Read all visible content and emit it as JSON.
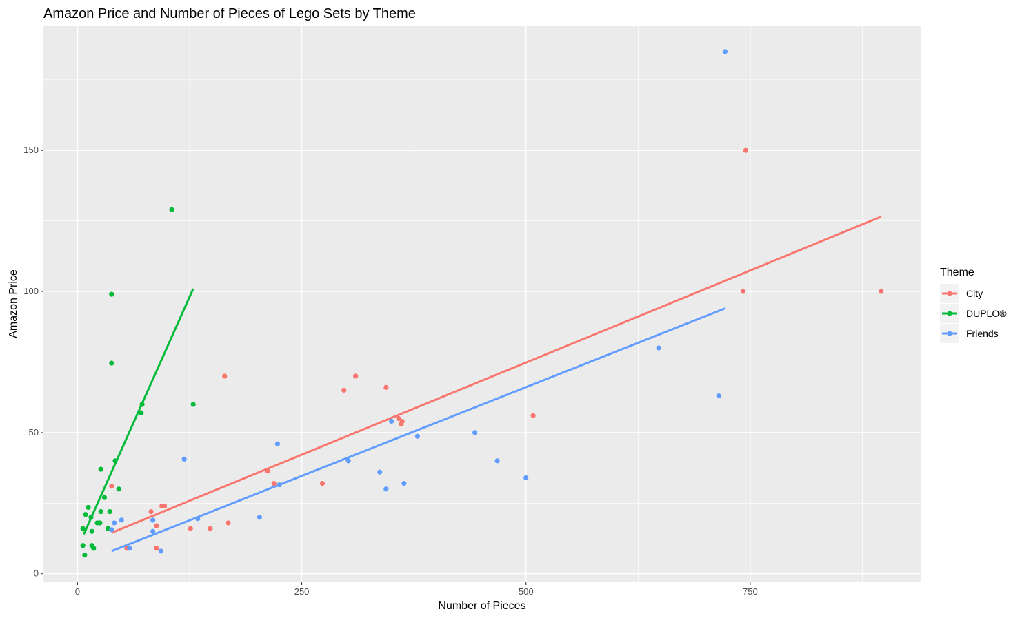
{
  "chart_data": {
    "type": "scatter",
    "title": "Amazon Price and Number of Pieces of Lego Sets by Theme",
    "xlabel": "Number of Pieces",
    "ylabel": "Amazon Price",
    "xlim": [
      -38,
      940
    ],
    "ylim": [
      -3,
      194
    ],
    "xticks": [
      0,
      250,
      500,
      750
    ],
    "yticks": [
      0,
      50,
      100,
      150
    ],
    "grid": true,
    "legend": {
      "title": "Theme",
      "placement": "right"
    },
    "series": [
      {
        "name": "City",
        "color": "#F8766D",
        "points": [
          [
            745,
            150
          ],
          [
            742,
            100
          ],
          [
            896,
            100
          ],
          [
            164,
            70
          ],
          [
            310,
            70
          ],
          [
            297,
            65
          ],
          [
            344,
            66
          ],
          [
            508,
            56
          ],
          [
            358,
            55
          ],
          [
            362,
            54
          ],
          [
            361,
            53
          ],
          [
            212,
            36.4
          ],
          [
            219,
            32
          ],
          [
            273,
            32
          ],
          [
            38,
            31
          ],
          [
            94,
            24
          ],
          [
            97,
            24
          ],
          [
            82,
            22
          ],
          [
            88,
            17
          ],
          [
            126,
            16
          ],
          [
            148,
            16
          ],
          [
            168,
            18
          ],
          [
            55,
            9
          ],
          [
            88,
            9
          ]
        ],
        "fit": [
          [
            38,
            14.5
          ],
          [
            896,
            126.5
          ]
        ]
      },
      {
        "name": "DUPLO®",
        "color": "#00BA38",
        "points": [
          [
            105,
            129
          ],
          [
            38,
            99
          ],
          [
            38,
            74.6
          ],
          [
            129,
            60
          ],
          [
            72,
            60
          ],
          [
            71,
            57
          ],
          [
            42,
            40
          ],
          [
            26,
            37
          ],
          [
            46,
            30
          ],
          [
            30,
            27
          ],
          [
            12,
            23.5
          ],
          [
            9,
            21
          ],
          [
            36,
            22
          ],
          [
            26,
            22
          ],
          [
            15,
            20
          ],
          [
            22,
            18
          ],
          [
            25,
            18
          ],
          [
            6,
            16
          ],
          [
            34,
            16
          ],
          [
            16,
            15
          ],
          [
            6,
            10
          ],
          [
            16,
            10
          ],
          [
            18,
            9
          ],
          [
            8,
            6.6
          ]
        ],
        "fit": [
          [
            7,
            14
          ],
          [
            129,
            101
          ]
        ]
      },
      {
        "name": "Friends",
        "color": "#619CFF",
        "points": [
          [
            722,
            185
          ],
          [
            648,
            80
          ],
          [
            715,
            63
          ],
          [
            223,
            46
          ],
          [
            443,
            50
          ],
          [
            379,
            48.7
          ],
          [
            350,
            54
          ],
          [
            119,
            40.6
          ],
          [
            302,
            40
          ],
          [
            468,
            40
          ],
          [
            337,
            36
          ],
          [
            500,
            34
          ],
          [
            364,
            32
          ],
          [
            225,
            31.5
          ],
          [
            344,
            30
          ],
          [
            203,
            20
          ],
          [
            134,
            19.5
          ],
          [
            49,
            19
          ],
          [
            41,
            18
          ],
          [
            84,
            19
          ],
          [
            38,
            15.6
          ],
          [
            84,
            15
          ],
          [
            58,
            9
          ],
          [
            93,
            8
          ]
        ],
        "fit": [
          [
            38,
            8
          ],
          [
            722,
            94
          ]
        ]
      }
    ]
  }
}
